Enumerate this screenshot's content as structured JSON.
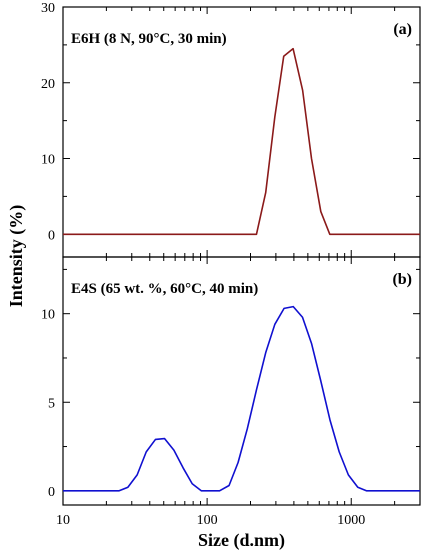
{
  "chart_data": [
    {
      "type": "line",
      "tag": "(a)",
      "label": "E6H (8 N, 90°C, 30 min)",
      "color": "#8b1a1a",
      "xscale": "log",
      "xlim": [
        10,
        3000
      ],
      "ylim": [
        -3,
        30
      ],
      "yticks": [
        0,
        10,
        20,
        30
      ],
      "series": [
        {
          "x": [
            10,
            190,
            220,
            255,
            295,
            340,
            395,
            460,
            530,
            615,
            710,
            3000
          ],
          "y": [
            0,
            0,
            0,
            5.5,
            15.5,
            23.5,
            24.5,
            19,
            10,
            3,
            0,
            0
          ]
        }
      ]
    },
    {
      "type": "line",
      "tag": "(b)",
      "label": "E4S (65 wt. %, 60°C, 40 min)",
      "color": "#1010d0",
      "xscale": "log",
      "xlim": [
        10,
        3000
      ],
      "ylim": [
        -0.8,
        13.2
      ],
      "yticks": [
        0,
        5,
        10
      ],
      "series": [
        {
          "x": [
            10,
            24.4,
            28.2,
            32.7,
            37.8,
            43.8,
            50.7,
            58.8,
            68.1,
            78.8,
            91.3,
            106,
            122,
            142,
            164,
            190,
            220,
            255,
            295,
            342,
            396,
            459,
            531,
            615,
            712,
            825,
            955,
            1110,
            1280,
            1480,
            3000
          ],
          "y": [
            0,
            0,
            0.2,
            0.9,
            2.2,
            2.9,
            2.95,
            2.3,
            1.3,
            0.4,
            0,
            0,
            0,
            0.3,
            1.6,
            3.5,
            5.7,
            7.8,
            9.4,
            10.3,
            10.4,
            9.8,
            8.3,
            6.2,
            4.0,
            2.2,
            0.9,
            0.2,
            0,
            0,
            0
          ]
        }
      ]
    }
  ],
  "axes": {
    "xlabel": "Size (d.nm)",
    "ylabel": "Intensity (%)",
    "xticks": [
      10,
      100,
      1000
    ],
    "xtick_labels": [
      "10",
      "100",
      "1000"
    ]
  }
}
